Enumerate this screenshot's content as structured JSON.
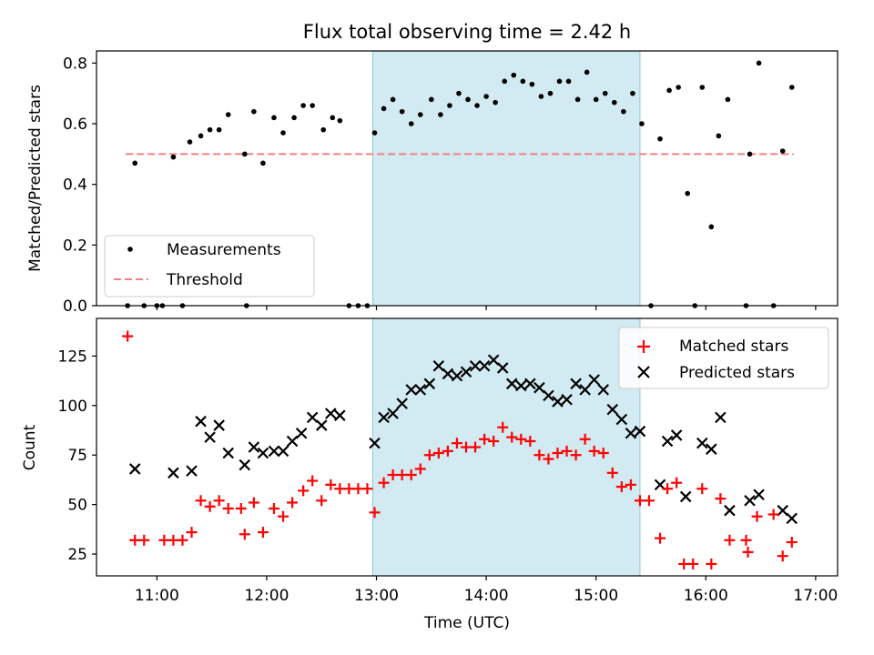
{
  "chart_data": [
    {
      "type": "scatter",
      "title": "Flux total observing time = 2.42 h",
      "ylabel": "Matched/Predicted stars",
      "xlim": [
        "10:27",
        "17:12"
      ],
      "ylim": [
        0,
        0.84
      ],
      "x_ticks": [
        "11:00",
        "12:00",
        "13:00",
        "14:00",
        "15:00",
        "16:00",
        "17:00"
      ],
      "y_ticks": [
        "0.0",
        "0.2",
        "0.4",
        "0.6",
        "0.8"
      ],
      "shaded_span": [
        "12:58",
        "15:24"
      ],
      "threshold": {
        "name": "Threshold",
        "value": 0.5,
        "x": [
          "10:43",
          "16:48"
        ],
        "color": "#f08080"
      },
      "legend_position": "lower-left",
      "series": [
        {
          "name": "Measurements",
          "color": "#000000",
          "marker": "dot",
          "points": [
            [
              "10:44",
              0
            ],
            [
              "10:48",
              0.47
            ],
            [
              "10:53",
              0
            ],
            [
              "11:00",
              0
            ],
            [
              "11:03",
              0
            ],
            [
              "11:09",
              0.49
            ],
            [
              "11:14",
              0
            ],
            [
              "11:18",
              0.54
            ],
            [
              "11:24",
              0.56
            ],
            [
              "11:29",
              0.58
            ],
            [
              "11:34",
              0.58
            ],
            [
              "11:39",
              0.63
            ],
            [
              "11:48",
              0.5
            ],
            [
              "11:49",
              0
            ],
            [
              "11:53",
              0.64
            ],
            [
              "11:58",
              0.47
            ],
            [
              "12:04",
              0.62
            ],
            [
              "12:09",
              0.57
            ],
            [
              "12:15",
              0.62
            ],
            [
              "12:20",
              0.66
            ],
            [
              "12:25",
              0.66
            ],
            [
              "12:31",
              0.58
            ],
            [
              "12:36",
              0.62
            ],
            [
              "12:40",
              0.61
            ],
            [
              "12:45",
              0
            ],
            [
              "12:50",
              0
            ],
            [
              "12:55",
              0
            ],
            [
              "12:59",
              0.57
            ],
            [
              "13:04",
              0.65
            ],
            [
              "13:09",
              0.68
            ],
            [
              "13:14",
              0.64
            ],
            [
              "13:19",
              0.6
            ],
            [
              "13:24",
              0.63
            ],
            [
              "13:30",
              0.68
            ],
            [
              "13:35",
              0.63
            ],
            [
              "13:40",
              0.66
            ],
            [
              "13:45",
              0.7
            ],
            [
              "13:50",
              0.68
            ],
            [
              "13:55",
              0.66
            ],
            [
              "14:00",
              0.69
            ],
            [
              "14:05",
              0.67
            ],
            [
              "14:10",
              0.74
            ],
            [
              "14:15",
              0.76
            ],
            [
              "14:20",
              0.74
            ],
            [
              "14:25",
              0.73
            ],
            [
              "14:30",
              0.69
            ],
            [
              "14:35",
              0.7
            ],
            [
              "14:40",
              0.74
            ],
            [
              "14:45",
              0.74
            ],
            [
              "14:50",
              0.68
            ],
            [
              "14:55",
              0.77
            ],
            [
              "15:00",
              0.68
            ],
            [
              "15:05",
              0.7
            ],
            [
              "15:10",
              0.67
            ],
            [
              "15:15",
              0.64
            ],
            [
              "15:20",
              0.7
            ],
            [
              "15:25",
              0.6
            ],
            [
              "15:30",
              0
            ],
            [
              "15:35",
              0.55
            ],
            [
              "15:40",
              0.71
            ],
            [
              "15:45",
              0.72
            ],
            [
              "15:50",
              0.37
            ],
            [
              "15:54",
              0
            ],
            [
              "15:58",
              0.72
            ],
            [
              "16:03",
              0.26
            ],
            [
              "16:07",
              0.56
            ],
            [
              "16:12",
              0.68
            ],
            [
              "16:22",
              0
            ],
            [
              "16:24",
              0.5
            ],
            [
              "16:29",
              0.8
            ],
            [
              "16:37",
              0
            ],
            [
              "16:42",
              0.51
            ],
            [
              "16:47",
              0.72
            ]
          ]
        }
      ]
    },
    {
      "type": "scatter",
      "xlabel": "Time (UTC)",
      "ylabel": "Count",
      "xlim": [
        "10:27",
        "17:12"
      ],
      "ylim": [
        14,
        144
      ],
      "x_ticks": [
        "11:00",
        "12:00",
        "13:00",
        "14:00",
        "15:00",
        "16:00",
        "17:00"
      ],
      "y_ticks": [
        "25",
        "50",
        "75",
        "100",
        "125"
      ],
      "shaded_span": [
        "12:58",
        "15:24"
      ],
      "legend_position": "top-right",
      "series": [
        {
          "name": "Matched stars",
          "color": "#ff0000",
          "marker": "plus",
          "points": [
            [
              "10:44",
              135
            ],
            [
              "10:48",
              32
            ],
            [
              "10:53",
              32
            ],
            [
              "11:04",
              32
            ],
            [
              "11:09",
              32
            ],
            [
              "11:14",
              32
            ],
            [
              "11:19",
              36
            ],
            [
              "11:24",
              52
            ],
            [
              "11:29",
              49
            ],
            [
              "11:34",
              52
            ],
            [
              "11:39",
              48
            ],
            [
              "11:46",
              48
            ],
            [
              "11:48",
              35
            ],
            [
              "11:53",
              51
            ],
            [
              "11:58",
              36
            ],
            [
              "12:04",
              48
            ],
            [
              "12:09",
              44
            ],
            [
              "12:14",
              51
            ],
            [
              "12:20",
              57
            ],
            [
              "12:25",
              62
            ],
            [
              "12:30",
              52
            ],
            [
              "12:35",
              60
            ],
            [
              "12:40",
              58
            ],
            [
              "12:45",
              58
            ],
            [
              "12:50",
              58
            ],
            [
              "12:55",
              58
            ],
            [
              "12:59",
              46
            ],
            [
              "13:04",
              61
            ],
            [
              "13:09",
              65
            ],
            [
              "13:14",
              65
            ],
            [
              "13:19",
              65
            ],
            [
              "13:24",
              68
            ],
            [
              "13:29",
              75
            ],
            [
              "13:34",
              76
            ],
            [
              "13:39",
              77
            ],
            [
              "13:44",
              81
            ],
            [
              "13:49",
              79
            ],
            [
              "13:54",
              79
            ],
            [
              "13:59",
              83
            ],
            [
              "14:04",
              82
            ],
            [
              "14:09",
              89
            ],
            [
              "14:14",
              84
            ],
            [
              "14:19",
              83
            ],
            [
              "14:24",
              82
            ],
            [
              "14:29",
              75
            ],
            [
              "14:34",
              73
            ],
            [
              "14:39",
              76
            ],
            [
              "14:44",
              77
            ],
            [
              "14:49",
              75
            ],
            [
              "14:54",
              83
            ],
            [
              "14:59",
              77
            ],
            [
              "15:04",
              76
            ],
            [
              "15:09",
              66
            ],
            [
              "15:14",
              59
            ],
            [
              "15:19",
              60
            ],
            [
              "15:24",
              52
            ],
            [
              "15:29",
              52
            ],
            [
              "15:35",
              33
            ],
            [
              "15:39",
              58
            ],
            [
              "15:44",
              61
            ],
            [
              "15:48",
              20
            ],
            [
              "15:53",
              20
            ],
            [
              "15:58",
              58
            ],
            [
              "16:03",
              20
            ],
            [
              "16:08",
              53
            ],
            [
              "16:13",
              32
            ],
            [
              "16:22",
              32
            ],
            [
              "16:23",
              26
            ],
            [
              "16:28",
              44
            ],
            [
              "16:37",
              45
            ],
            [
              "16:42",
              24
            ],
            [
              "16:47",
              31
            ]
          ]
        },
        {
          "name": "Predicted stars",
          "color": "#000000",
          "marker": "x",
          "points": [
            [
              "10:48",
              68
            ],
            [
              "11:09",
              66
            ],
            [
              "11:19",
              67
            ],
            [
              "11:24",
              92
            ],
            [
              "11:29",
              84
            ],
            [
              "11:34",
              90
            ],
            [
              "11:39",
              76
            ],
            [
              "11:48",
              70
            ],
            [
              "11:53",
              79
            ],
            [
              "11:58",
              76
            ],
            [
              "12:04",
              77
            ],
            [
              "12:09",
              77
            ],
            [
              "12:14",
              82
            ],
            [
              "12:19",
              86
            ],
            [
              "12:25",
              94
            ],
            [
              "12:30",
              90
            ],
            [
              "12:35",
              96
            ],
            [
              "12:40",
              95
            ],
            [
              "12:59",
              81
            ],
            [
              "13:04",
              94
            ],
            [
              "13:09",
              96
            ],
            [
              "13:14",
              101
            ],
            [
              "13:19",
              108
            ],
            [
              "13:24",
              108
            ],
            [
              "13:29",
              111
            ],
            [
              "13:34",
              120
            ],
            [
              "13:39",
              116
            ],
            [
              "13:44",
              115
            ],
            [
              "13:49",
              117
            ],
            [
              "13:54",
              120
            ],
            [
              "13:59",
              120
            ],
            [
              "14:04",
              123
            ],
            [
              "14:09",
              119
            ],
            [
              "14:14",
              111
            ],
            [
              "14:19",
              110
            ],
            [
              "14:24",
              111
            ],
            [
              "14:29",
              109
            ],
            [
              "14:34",
              105
            ],
            [
              "14:39",
              102
            ],
            [
              "14:44",
              103
            ],
            [
              "14:49",
              111
            ],
            [
              "14:54",
              108
            ],
            [
              "14:59",
              113
            ],
            [
              "15:04",
              108
            ],
            [
              "15:09",
              98
            ],
            [
              "15:14",
              93
            ],
            [
              "15:19",
              86
            ],
            [
              "15:24",
              87
            ],
            [
              "15:35",
              60
            ],
            [
              "15:39",
              82
            ],
            [
              "15:44",
              85
            ],
            [
              "15:49",
              54
            ],
            [
              "15:58",
              81
            ],
            [
              "16:03",
              78
            ],
            [
              "16:08",
              94
            ],
            [
              "16:13",
              47
            ],
            [
              "16:24",
              52
            ],
            [
              "16:29",
              55
            ],
            [
              "16:42",
              47
            ],
            [
              "16:47",
              43
            ]
          ]
        }
      ]
    }
  ]
}
